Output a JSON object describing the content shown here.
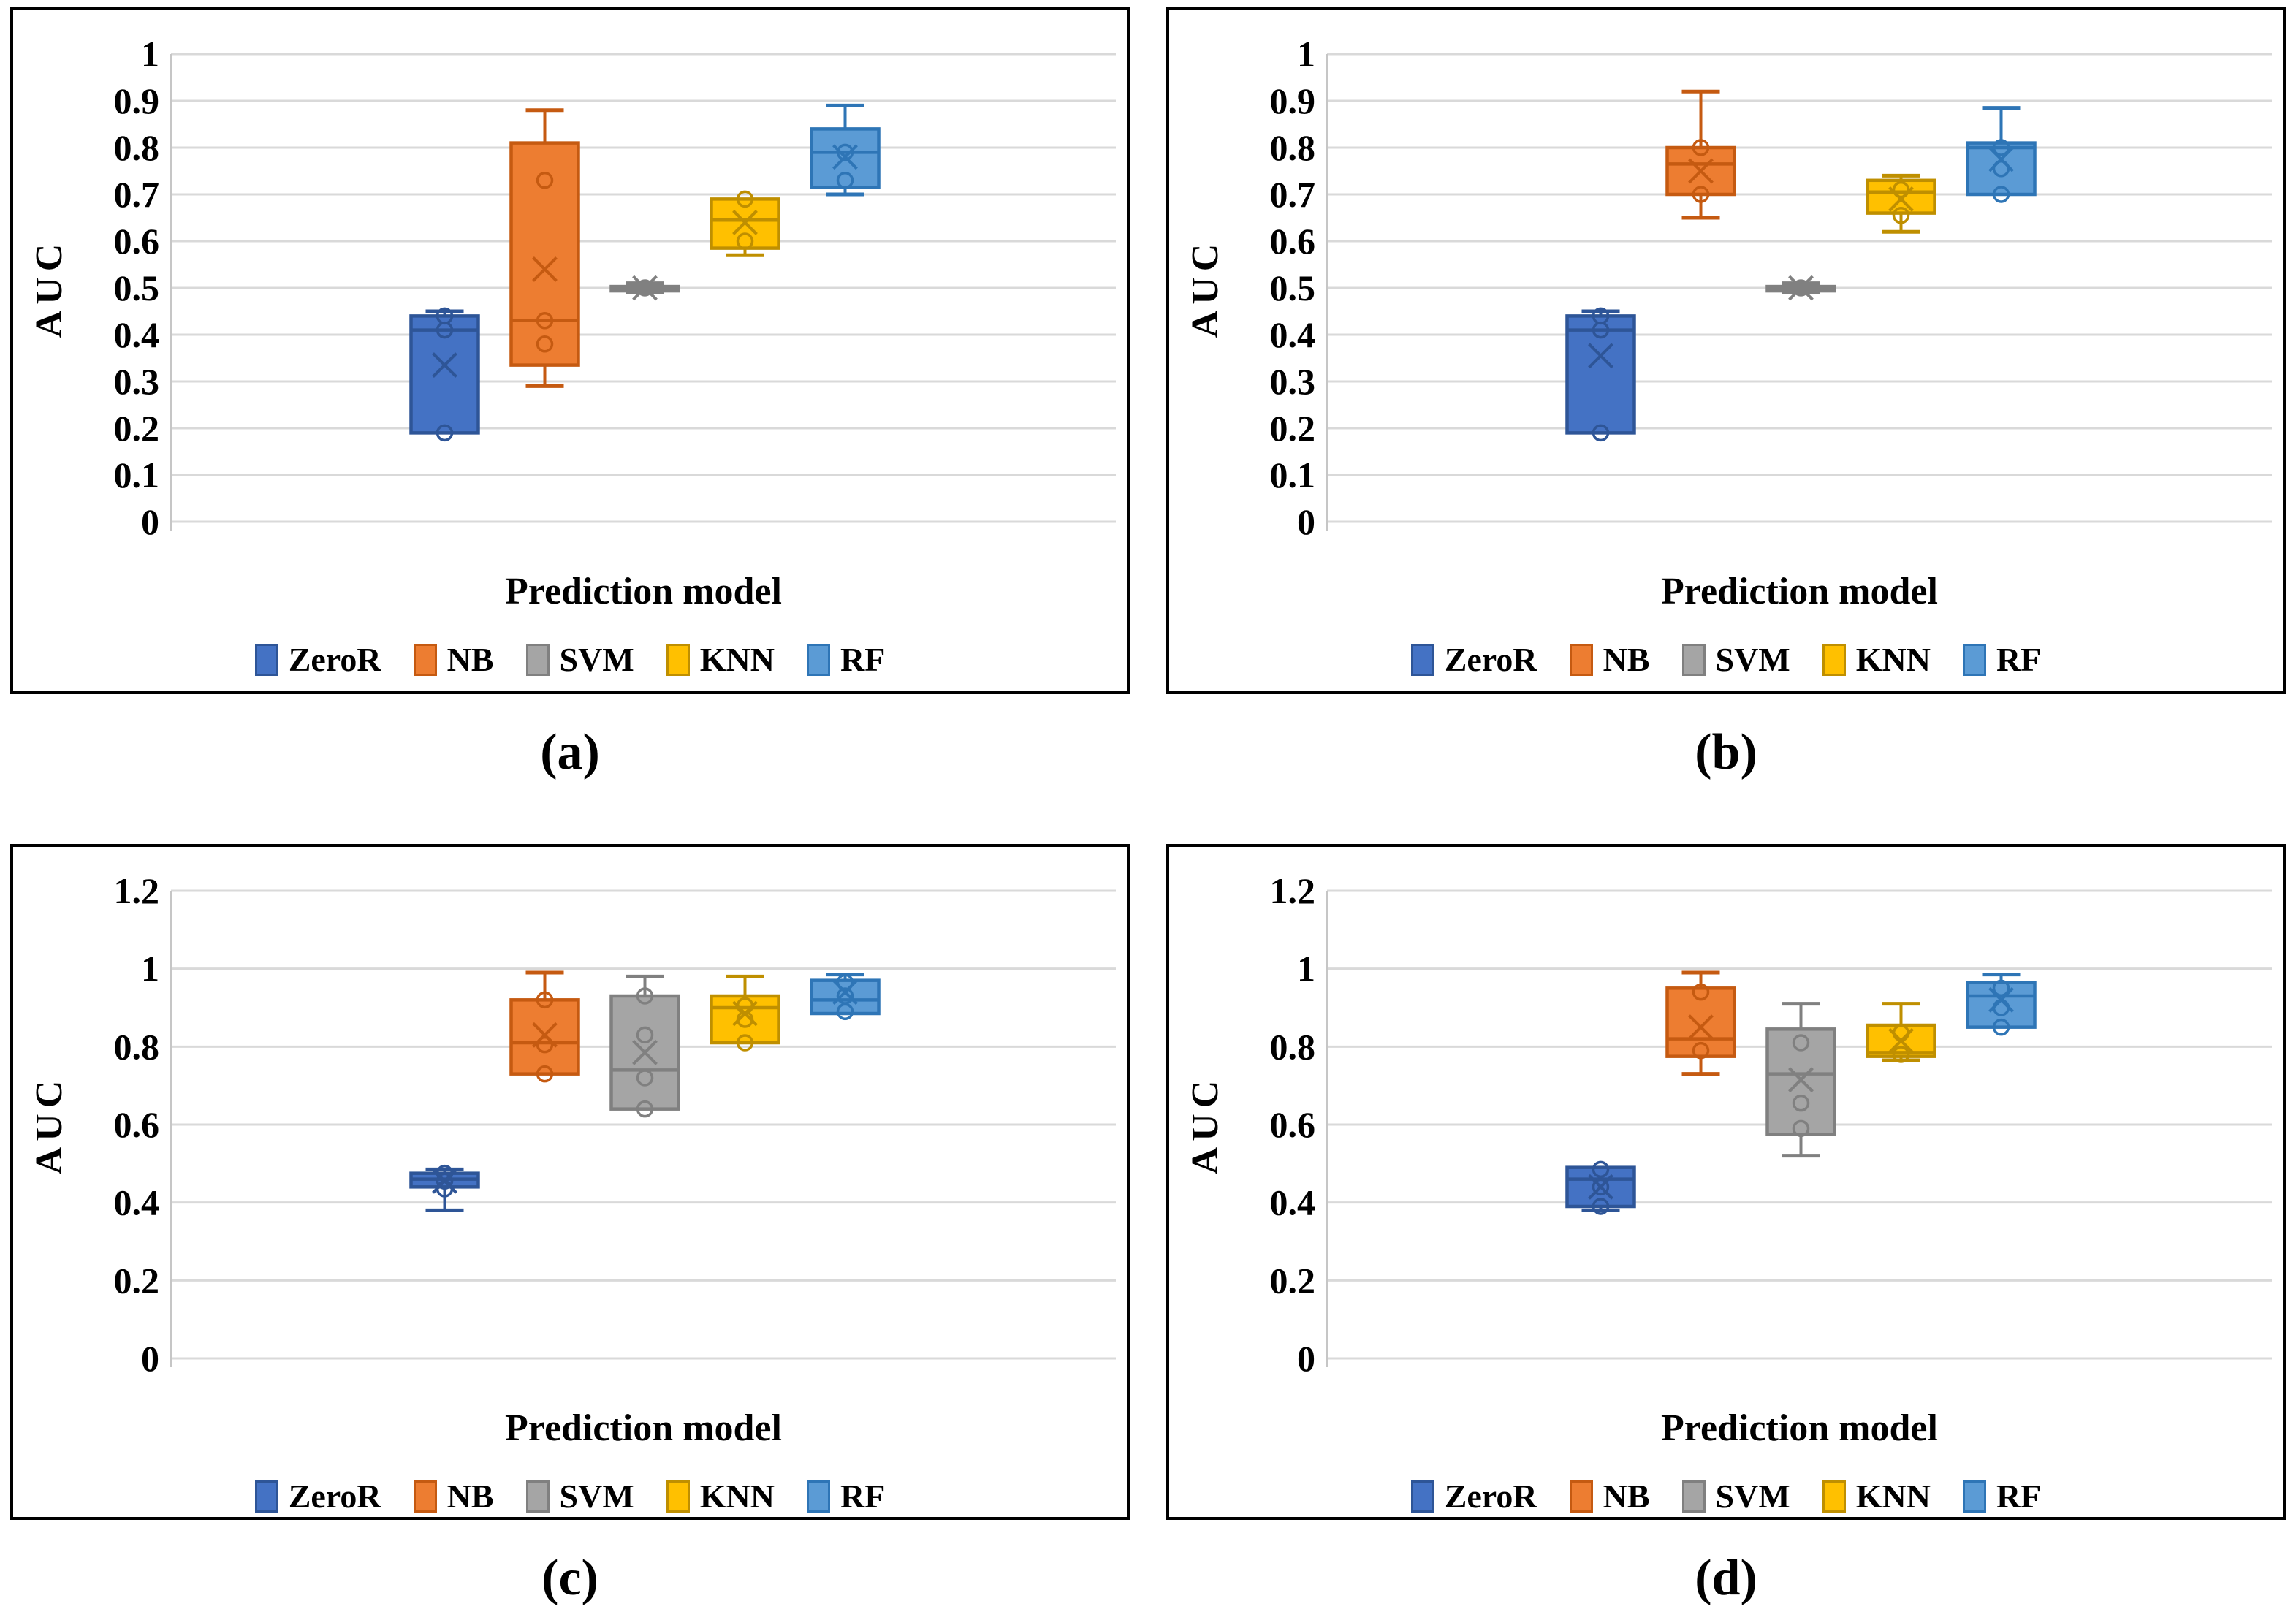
{
  "figure": {
    "description": "Box plots of AUC by prediction model across four panels"
  },
  "legend": {
    "items": [
      {
        "label": "ZeroR",
        "fill": "#4472C4",
        "line": "#2E5597"
      },
      {
        "label": "NB",
        "fill": "#ED7D31",
        "line": "#C55A11"
      },
      {
        "label": "SVM",
        "fill": "#A5A5A5",
        "line": "#808080"
      },
      {
        "label": "KNN",
        "fill": "#FFC000",
        "line": "#BF8F00"
      },
      {
        "label": "RF",
        "fill": "#5B9BD5",
        "line": "#2E75B6"
      }
    ]
  },
  "colors": {
    "ZeroR": {
      "fill": "#4472C4",
      "line": "#2E5597"
    },
    "NB": {
      "fill": "#ED7D31",
      "line": "#C55A11"
    },
    "SVM": {
      "fill": "#A5A5A5",
      "line": "#808080"
    },
    "KNN": {
      "fill": "#FFC000",
      "line": "#BF8F00"
    },
    "RF": {
      "fill": "#5B9BD5",
      "line": "#2E75B6"
    },
    "gridline": "#D9D9D9",
    "axis_line": "#C6C6C6",
    "text": "#000000"
  },
  "chart_data": [
    {
      "id": "a",
      "type": "box",
      "title": "(a)",
      "xlabel": "Prediction model",
      "ylabel": "AUC",
      "ylim": [
        0,
        1
      ],
      "yticks": [
        "0",
        "0.1",
        "0.2",
        "0.3",
        "0.4",
        "0.5",
        "0.6",
        "0.7",
        "0.8",
        "0.9",
        "1"
      ],
      "grid": true,
      "legend_position": "bottom",
      "categories": [
        "ZeroR",
        "NB",
        "SVM",
        "KNN",
        "RF"
      ],
      "series": [
        {
          "name": "ZeroR",
          "whisker_low": 0.19,
          "q1": 0.19,
          "median": 0.41,
          "q3": 0.44,
          "whisker_high": 0.45,
          "mean": 0.335,
          "points": [
            0.44,
            0.41,
            0.19
          ]
        },
        {
          "name": "NB",
          "whisker_low": 0.29,
          "q1": 0.335,
          "median": 0.43,
          "q3": 0.81,
          "whisker_high": 0.88,
          "mean": 0.54,
          "points": [
            0.73,
            0.43,
            0.38
          ]
        },
        {
          "name": "SVM",
          "whisker_low": 0.49,
          "q1": 0.497,
          "median": 0.5,
          "q3": 0.503,
          "whisker_high": 0.51,
          "mean": 0.5,
          "points": [
            0.5
          ]
        },
        {
          "name": "KNN",
          "whisker_low": 0.57,
          "q1": 0.585,
          "median": 0.645,
          "q3": 0.69,
          "whisker_high": 0.69,
          "mean": 0.64,
          "points": [
            0.69,
            0.6
          ]
        },
        {
          "name": "RF",
          "whisker_low": 0.7,
          "q1": 0.715,
          "median": 0.79,
          "q3": 0.84,
          "whisker_high": 0.89,
          "mean": 0.78,
          "points": [
            0.79,
            0.73
          ]
        }
      ]
    },
    {
      "id": "b",
      "type": "box",
      "title": "(b)",
      "xlabel": "Prediction model",
      "ylabel": "AUC",
      "ylim": [
        0,
        1
      ],
      "yticks": [
        "0",
        "0.1",
        "0.2",
        "0.3",
        "0.4",
        "0.5",
        "0.6",
        "0.7",
        "0.8",
        "0.9",
        "1"
      ],
      "grid": true,
      "legend_position": "bottom",
      "categories": [
        "ZeroR",
        "NB",
        "SVM",
        "KNN",
        "RF"
      ],
      "series": [
        {
          "name": "ZeroR",
          "whisker_low": 0.19,
          "q1": 0.19,
          "median": 0.41,
          "q3": 0.44,
          "whisker_high": 0.45,
          "mean": 0.355,
          "points": [
            0.44,
            0.41,
            0.19
          ]
        },
        {
          "name": "NB",
          "whisker_low": 0.65,
          "q1": 0.7,
          "median": 0.765,
          "q3": 0.8,
          "whisker_high": 0.92,
          "mean": 0.75,
          "points": [
            0.8,
            0.7
          ]
        },
        {
          "name": "SVM",
          "whisker_low": 0.49,
          "q1": 0.497,
          "median": 0.5,
          "q3": 0.503,
          "whisker_high": 0.51,
          "mean": 0.5,
          "points": [
            0.5
          ]
        },
        {
          "name": "KNN",
          "whisker_low": 0.62,
          "q1": 0.66,
          "median": 0.705,
          "q3": 0.73,
          "whisker_high": 0.74,
          "mean": 0.69,
          "points": [
            0.71,
            0.655
          ]
        },
        {
          "name": "RF",
          "whisker_low": 0.7,
          "q1": 0.7,
          "median": 0.8,
          "q3": 0.81,
          "whisker_high": 0.885,
          "mean": 0.775,
          "points": [
            0.8,
            0.755,
            0.7
          ]
        }
      ]
    },
    {
      "id": "c",
      "type": "box",
      "title": "(c)",
      "xlabel": "Prediction model",
      "ylabel": "AUC",
      "ylim": [
        0,
        1.2
      ],
      "yticks": [
        "0",
        "0.2",
        "0.4",
        "0.6",
        "0.8",
        "1",
        "1.2"
      ],
      "grid": true,
      "legend_position": "bottom",
      "categories": [
        "ZeroR",
        "NB",
        "SVM",
        "KNN",
        "RF"
      ],
      "series": [
        {
          "name": "ZeroR",
          "whisker_low": 0.38,
          "q1": 0.44,
          "median": 0.46,
          "q3": 0.475,
          "whisker_high": 0.485,
          "mean": 0.455,
          "points": [
            0.475,
            0.455,
            0.435
          ]
        },
        {
          "name": "NB",
          "whisker_low": 0.73,
          "q1": 0.73,
          "median": 0.81,
          "q3": 0.92,
          "whisker_high": 0.99,
          "mean": 0.83,
          "points": [
            0.92,
            0.805,
            0.73
          ]
        },
        {
          "name": "SVM",
          "whisker_low": 0.64,
          "q1": 0.64,
          "median": 0.74,
          "q3": 0.93,
          "whisker_high": 0.98,
          "mean": 0.785,
          "points": [
            0.93,
            0.83,
            0.72,
            0.64
          ]
        },
        {
          "name": "KNN",
          "whisker_low": 0.81,
          "q1": 0.81,
          "median": 0.9,
          "q3": 0.93,
          "whisker_high": 0.98,
          "mean": 0.885,
          "points": [
            0.905,
            0.87,
            0.81
          ]
        },
        {
          "name": "RF",
          "whisker_low": 0.885,
          "q1": 0.885,
          "median": 0.92,
          "q3": 0.97,
          "whisker_high": 0.985,
          "mean": 0.94,
          "points": [
            0.965,
            0.93,
            0.89
          ]
        }
      ]
    },
    {
      "id": "d",
      "type": "box",
      "title": "(d)",
      "xlabel": "Prediction model",
      "ylabel": "AUC",
      "ylim": [
        0,
        1.2
      ],
      "yticks": [
        "0",
        "0.2",
        "0.4",
        "0.6",
        "0.8",
        "1",
        "1.2"
      ],
      "grid": true,
      "legend_position": "bottom",
      "categories": [
        "ZeroR",
        "NB",
        "SVM",
        "KNN",
        "RF"
      ],
      "series": [
        {
          "name": "ZeroR",
          "whisker_low": 0.38,
          "q1": 0.39,
          "median": 0.46,
          "q3": 0.49,
          "whisker_high": 0.49,
          "mean": 0.44,
          "points": [
            0.485,
            0.44,
            0.39
          ]
        },
        {
          "name": "NB",
          "whisker_low": 0.73,
          "q1": 0.775,
          "median": 0.82,
          "q3": 0.95,
          "whisker_high": 0.99,
          "mean": 0.85,
          "points": [
            0.94,
            0.79
          ]
        },
        {
          "name": "SVM",
          "whisker_low": 0.52,
          "q1": 0.575,
          "median": 0.73,
          "q3": 0.845,
          "whisker_high": 0.91,
          "mean": 0.715,
          "points": [
            0.81,
            0.655,
            0.59
          ]
        },
        {
          "name": "KNN",
          "whisker_low": 0.765,
          "q1": 0.775,
          "median": 0.785,
          "q3": 0.855,
          "whisker_high": 0.91,
          "mean": 0.815,
          "points": [
            0.835,
            0.78
          ]
        },
        {
          "name": "RF",
          "whisker_low": 0.85,
          "q1": 0.85,
          "median": 0.93,
          "q3": 0.965,
          "whisker_high": 0.985,
          "mean": 0.92,
          "points": [
            0.95,
            0.9,
            0.85
          ]
        }
      ]
    }
  ]
}
